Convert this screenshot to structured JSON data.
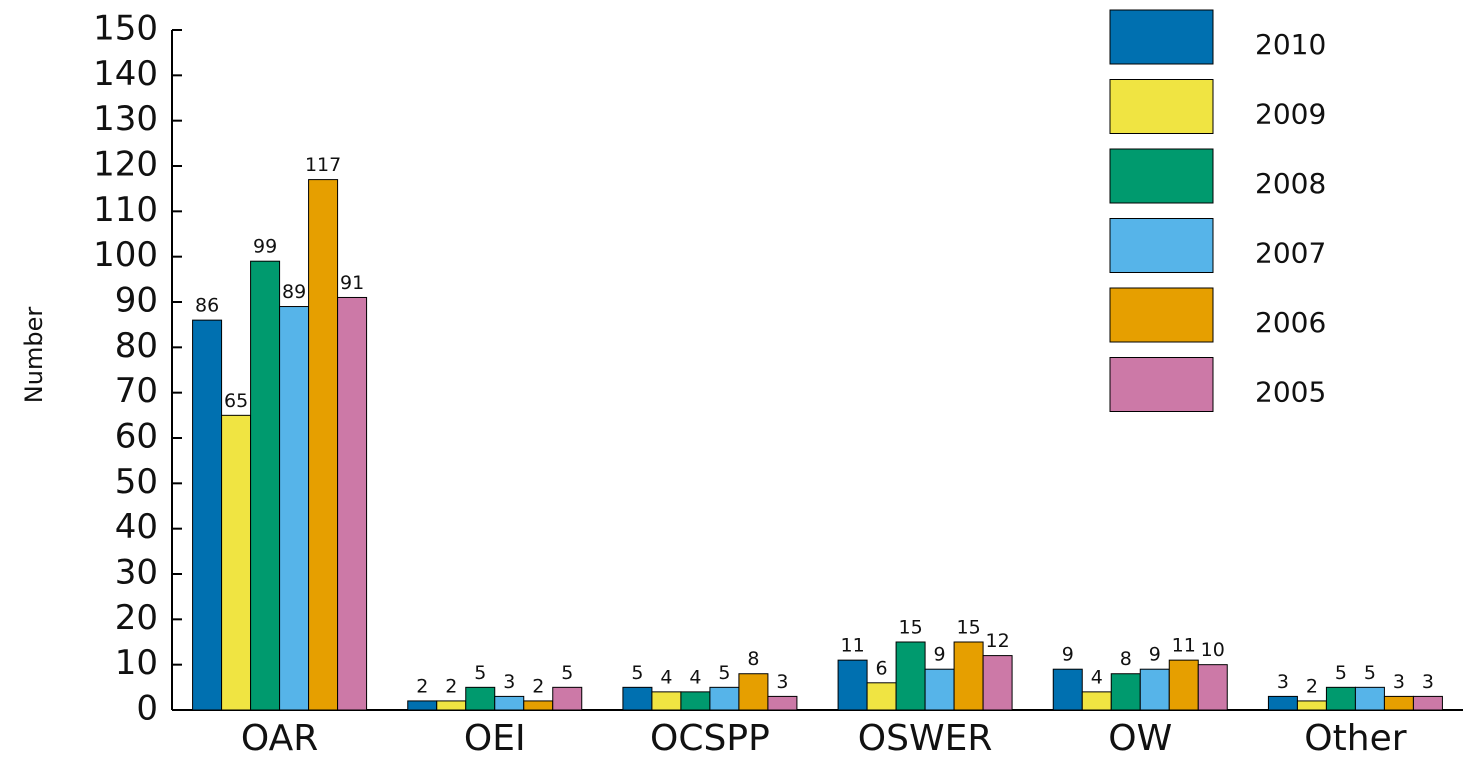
{
  "chart_data": {
    "type": "bar",
    "y_label": "Number",
    "categories": [
      "OAR",
      "OEI",
      "OCSPP",
      "OSWER",
      "OW",
      "Other"
    ],
    "series": [
      {
        "name": "2010",
        "color": "#0070b0",
        "values": [
          86,
          2,
          5,
          11,
          9,
          3
        ]
      },
      {
        "name": "2009",
        "color": "#f0e442",
        "values": [
          65,
          2,
          4,
          6,
          4,
          2
        ]
      },
      {
        "name": "2008",
        "color": "#009a6e",
        "values": [
          99,
          5,
          4,
          15,
          8,
          5
        ]
      },
      {
        "name": "2007",
        "color": "#56b4e9",
        "values": [
          89,
          3,
          5,
          9,
          9,
          5
        ]
      },
      {
        "name": "2006",
        "color": "#e69f00",
        "values": [
          117,
          2,
          8,
          15,
          11,
          3
        ]
      },
      {
        "name": "2005",
        "color": "#cc79a7",
        "values": [
          91,
          5,
          3,
          12,
          10,
          3
        ]
      }
    ],
    "ylim": [
      0,
      150
    ],
    "yticks": [
      0,
      10,
      20,
      30,
      40,
      50,
      60,
      70,
      80,
      90,
      100,
      110,
      120,
      130,
      140,
      150
    ],
    "legend": "upper right"
  }
}
